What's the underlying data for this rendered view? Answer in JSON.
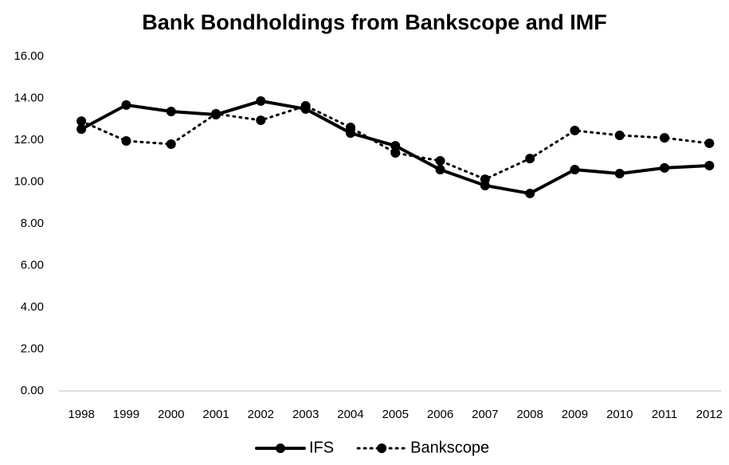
{
  "chart_data": {
    "type": "line",
    "title": "Bank Bondholdings from Bankscope and IMF",
    "categories": [
      "1998",
      "1999",
      "2000",
      "2001",
      "2002",
      "2003",
      "2004",
      "2005",
      "2006",
      "2007",
      "2008",
      "2009",
      "2010",
      "2011",
      "2012"
    ],
    "series": [
      {
        "name": "IFS",
        "color": "#000000",
        "line_style": "solid",
        "values": [
          12.53,
          13.68,
          13.37,
          13.22,
          13.87,
          13.49,
          12.34,
          11.73,
          10.59,
          9.83,
          9.45,
          10.59,
          10.4,
          10.67,
          10.78
        ]
      },
      {
        "name": "Bankscope",
        "color": "#000000",
        "line_style": "dotted",
        "values": [
          12.91,
          11.96,
          11.81,
          13.26,
          12.95,
          13.64,
          12.61,
          11.39,
          11.01,
          10.13,
          11.12,
          12.46,
          12.23,
          12.11,
          11.85
        ]
      }
    ],
    "ylim": [
      0,
      16
    ],
    "yticks": [
      {
        "value": 0,
        "label": "0.00"
      },
      {
        "value": 2,
        "label": "2.00"
      },
      {
        "value": 4,
        "label": "4.00"
      },
      {
        "value": 6,
        "label": "6.00"
      },
      {
        "value": 8,
        "label": "8.00"
      },
      {
        "value": 10,
        "label": "10.00"
      },
      {
        "value": 12,
        "label": "12.00"
      },
      {
        "value": 14,
        "label": "14.00"
      },
      {
        "value": 16,
        "label": "16.00"
      }
    ],
    "grid": false,
    "legend": "bottom"
  }
}
